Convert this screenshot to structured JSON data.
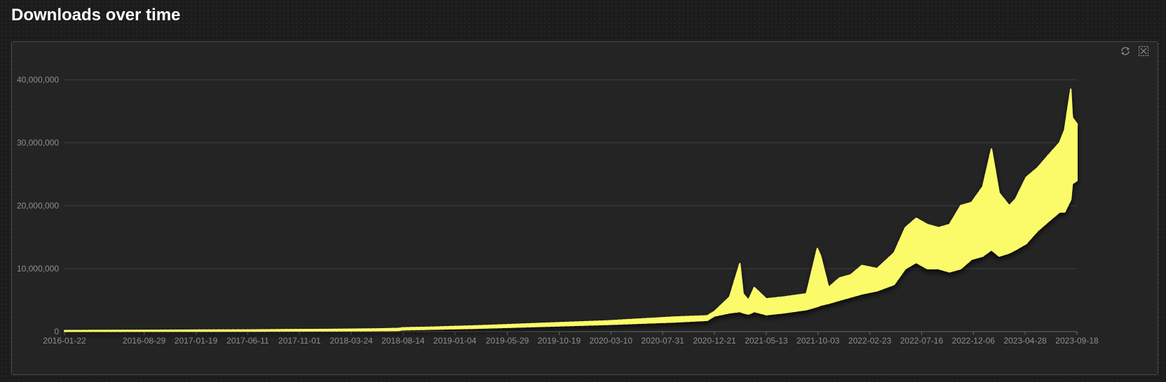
{
  "page": {
    "title": "Downloads over time"
  },
  "toolbar": {
    "restore_icon": "restore-icon",
    "zoom_icon": "data-zoom-icon"
  },
  "colors": {
    "series": "#fbfb6a",
    "grid": "#3f3f3f",
    "axis_text": "#8f8f8f"
  },
  "chart_data": {
    "type": "area",
    "title": "",
    "xlabel": "",
    "ylabel": "",
    "grid": true,
    "x_range": [
      "2016-01-22",
      "2023-09-18"
    ],
    "ylim": [
      0,
      40000000
    ],
    "y_ticks": [
      0,
      10000000,
      20000000,
      30000000,
      40000000
    ],
    "y_tick_labels": [
      "0",
      "10,000,000",
      "20,000,000",
      "30,000,000",
      "40,000,000"
    ],
    "x_tick_labels": [
      "2016-01-22",
      "2016-08-29",
      "2017-01-19",
      "2017-06-11",
      "2017-11-01",
      "2018-03-24",
      "2018-08-14",
      "2019-01-04",
      "2019-05-29",
      "2019-10-19",
      "2020-03-10",
      "2020-07-31",
      "2020-12-21",
      "2021-05-13",
      "2021-10-03",
      "2022-02-23",
      "2022-07-16",
      "2022-12-06",
      "2023-04-28",
      "2023-09-18"
    ],
    "series": [
      {
        "x": [
          "2016-01-22",
          "2016-06-01",
          "2016-10-01",
          "2017-02-01",
          "2017-06-01",
          "2017-10-01",
          "2018-02-01",
          "2018-06-01",
          "2018-08-01",
          "2018-08-14",
          "2018-11-01",
          "2019-03-01",
          "2019-06-01",
          "2019-09-01",
          "2019-12-01",
          "2020-03-01",
          "2020-06-01",
          "2020-09-01",
          "2020-12-01",
          "2020-12-21",
          "2021-02-01",
          "2021-03-01",
          "2021-03-10",
          "2021-03-25",
          "2021-04-10",
          "2021-05-13",
          "2021-07-01",
          "2021-09-01",
          "2021-10-01",
          "2021-10-10",
          "2021-11-01",
          "2021-12-01",
          "2022-01-01",
          "2022-02-01",
          "2022-03-15",
          "2022-05-01",
          "2022-06-01",
          "2022-07-01",
          "2022-08-01",
          "2022-09-01",
          "2022-10-01",
          "2022-11-01",
          "2022-12-01",
          "2023-01-01",
          "2023-01-25",
          "2023-02-15",
          "2023-03-15",
          "2023-04-01",
          "2023-05-01",
          "2023-06-01",
          "2023-07-01",
          "2023-08-01",
          "2023-08-15",
          "2023-09-01",
          "2023-09-05",
          "2023-09-18"
        ],
        "max": [
          150000,
          180000,
          200000,
          230000,
          260000,
          300000,
          340000,
          420000,
          500000,
          600000,
          700000,
          900000,
          1100000,
          1300000,
          1500000,
          1700000,
          2000000,
          2300000,
          2500000,
          3200000,
          5500000,
          10800000,
          6000000,
          5000000,
          7000000,
          5200000,
          5500000,
          6000000,
          13200000,
          12000000,
          7000000,
          8500000,
          9000000,
          10500000,
          10000000,
          12500000,
          16500000,
          18000000,
          17000000,
          16500000,
          17000000,
          20000000,
          20500000,
          23000000,
          29000000,
          22000000,
          20000000,
          21000000,
          24500000,
          26000000,
          28000000,
          30000000,
          32000000,
          38500000,
          34000000,
          33000000
        ],
        "min": [
          60000,
          70000,
          80000,
          90000,
          100000,
          120000,
          140000,
          170000,
          200000,
          300000,
          400000,
          550000,
          700000,
          850000,
          1000000,
          1150000,
          1350000,
          1550000,
          1800000,
          2500000,
          3000000,
          3200000,
          3000000,
          2800000,
          3200000,
          2700000,
          3000000,
          3500000,
          4000000,
          4200000,
          4500000,
          5000000,
          5500000,
          6000000,
          6500000,
          7500000,
          10000000,
          11000000,
          10000000,
          10000000,
          9500000,
          10000000,
          11500000,
          12000000,
          13000000,
          12000000,
          12500000,
          13000000,
          14000000,
          16000000,
          17500000,
          19000000,
          19000000,
          21000000,
          23500000,
          24000000
        ]
      }
    ]
  }
}
